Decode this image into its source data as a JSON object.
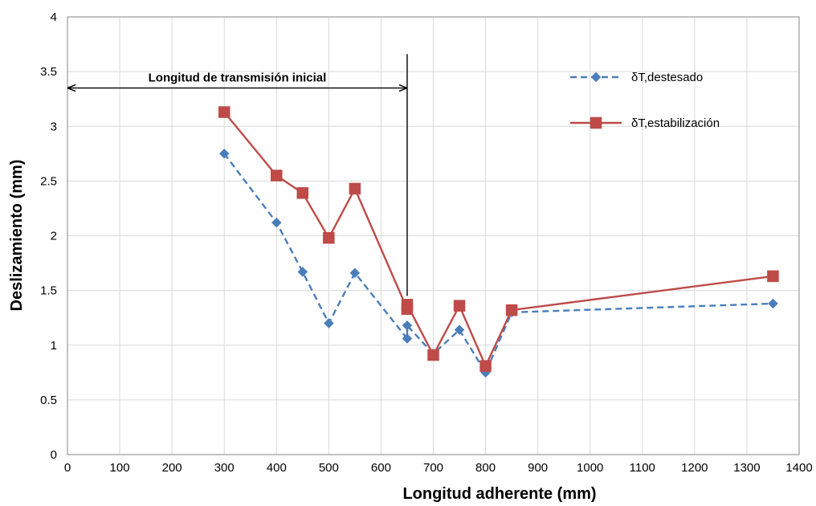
{
  "chart_data": {
    "type": "line",
    "xlabel": "Longitud adherente (mm)",
    "ylabel": "Deslizamiento (mm)",
    "xlim": [
      0,
      1400
    ],
    "ylim": [
      0,
      4
    ],
    "xticks": [
      0,
      100,
      200,
      300,
      400,
      500,
      600,
      700,
      800,
      900,
      1000,
      1100,
      1200,
      1300,
      1400
    ],
    "yticks": [
      0,
      0.5,
      1,
      1.5,
      2,
      2.5,
      3,
      3.5,
      4
    ],
    "ytick_labels": [
      "0",
      "0.5",
      "1",
      "1.5",
      "2",
      "2.5",
      "3",
      "3.5",
      "4"
    ],
    "grid": true,
    "legend_position": "top-right",
    "series": [
      {
        "name": "δT,destesado",
        "color": "#4a7ebb",
        "line_style": "dashed",
        "marker": "diamond",
        "x": [
          300,
          400,
          450,
          500,
          550,
          650,
          650,
          700,
          750,
          800,
          850,
          1350
        ],
        "y": [
          2.75,
          2.12,
          1.67,
          1.2,
          1.66,
          1.06,
          1.18,
          0.92,
          1.14,
          0.75,
          1.3,
          1.38
        ]
      },
      {
        "name": "δT,estabilización",
        "color": "#be4b48",
        "line_style": "solid",
        "marker": "square",
        "x": [
          300,
          400,
          450,
          500,
          550,
          650,
          650,
          700,
          750,
          800,
          850,
          1350
        ],
        "y": [
          3.13,
          2.55,
          2.39,
          1.98,
          2.43,
          1.33,
          1.37,
          0.91,
          1.36,
          0.81,
          1.32,
          1.63
        ]
      }
    ],
    "annotations": [
      {
        "text": "Longitud de transmisión inicial",
        "type": "double-arrow",
        "x_from": 0,
        "x_to": 650,
        "y": 3.35
      },
      {
        "type": "vertical-line",
        "x": 650,
        "y_from": 1.45,
        "y_to": 3.66
      }
    ]
  }
}
